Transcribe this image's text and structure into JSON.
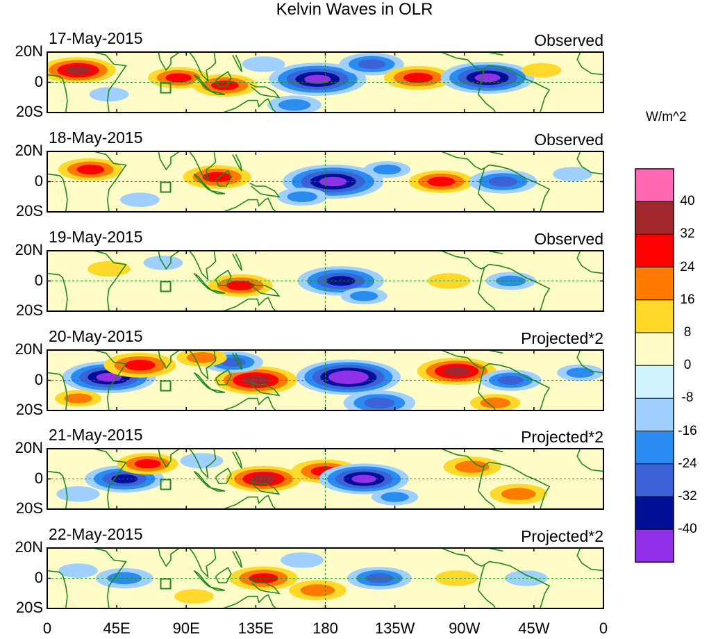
{
  "chart_data": {
    "type": "heatmap",
    "title": "Kelvin Waves in OLR",
    "units": "W/m^2",
    "x_ticks": [
      "0",
      "45E",
      "90E",
      "135E",
      "180",
      "135W",
      "90W",
      "45W",
      "0"
    ],
    "y_ticks": [
      "20N",
      "0",
      "20S"
    ],
    "xlim": [
      0,
      360
    ],
    "ylim": [
      -20,
      20
    ],
    "colorbar": {
      "levels": [
        "40",
        "32",
        "24",
        "16",
        "8",
        "0",
        "-8",
        "-16",
        "-24",
        "-32",
        "-40"
      ],
      "colors": [
        "#ff69b4",
        "#a0282d",
        "#ff0000",
        "#ff7a00",
        "#ffd92a",
        "#fffcc8",
        "#d0f3ff",
        "#9fd0ff",
        "#2a8cf0",
        "#3c62d8",
        "#000f96",
        "#9030e8"
      ]
    },
    "panels": [
      {
        "date": "17-May-2015",
        "kind": "Observed",
        "blobs": [
          {
            "lon": 20,
            "lat": 8,
            "v": 28
          },
          {
            "lon": 85,
            "lat": 3,
            "v": 20
          },
          {
            "lon": 115,
            "lat": -2,
            "v": 22
          },
          {
            "lon": 175,
            "lat": 2,
            "v": -40
          },
          {
            "lon": 160,
            "lat": -15,
            "v": -16
          },
          {
            "lon": 210,
            "lat": 12,
            "v": -22
          },
          {
            "lon": 240,
            "lat": 3,
            "v": 24
          },
          {
            "lon": 285,
            "lat": 3,
            "v": -38
          },
          {
            "lon": 140,
            "lat": 12,
            "v": -10
          },
          {
            "lon": 40,
            "lat": -8,
            "v": -8
          },
          {
            "lon": 320,
            "lat": 8,
            "v": 8
          }
        ]
      },
      {
        "date": "18-May-2015",
        "kind": "Observed",
        "blobs": [
          {
            "lon": 28,
            "lat": 8,
            "v": 22
          },
          {
            "lon": 110,
            "lat": 3,
            "v": 24
          },
          {
            "lon": 185,
            "lat": 0,
            "v": -42
          },
          {
            "lon": 165,
            "lat": -10,
            "v": -14
          },
          {
            "lon": 255,
            "lat": 0,
            "v": 22
          },
          {
            "lon": 295,
            "lat": 0,
            "v": -24
          },
          {
            "lon": 220,
            "lat": 8,
            "v": -12
          },
          {
            "lon": 60,
            "lat": -12,
            "v": -8
          },
          {
            "lon": 340,
            "lat": 5,
            "v": -8
          }
        ]
      },
      {
        "date": "19-May-2015",
        "kind": "Observed",
        "blobs": [
          {
            "lon": 125,
            "lat": -3,
            "v": 22
          },
          {
            "lon": 190,
            "lat": 0,
            "v": -34
          },
          {
            "lon": 205,
            "lat": -10,
            "v": -12
          },
          {
            "lon": 40,
            "lat": 8,
            "v": 10
          },
          {
            "lon": 260,
            "lat": 0,
            "v": 10
          },
          {
            "lon": 300,
            "lat": 0,
            "v": -14
          },
          {
            "lon": 75,
            "lat": 12,
            "v": -8
          }
        ]
      },
      {
        "date": "20-May-2015",
        "kind": "Projected*2",
        "blobs": [
          {
            "lon": 40,
            "lat": 2,
            "v": -38
          },
          {
            "lon": 60,
            "lat": 10,
            "v": 26
          },
          {
            "lon": 135,
            "lat": 0,
            "v": 32
          },
          {
            "lon": 120,
            "lat": 12,
            "v": -20
          },
          {
            "lon": 195,
            "lat": 2,
            "v": -44
          },
          {
            "lon": 215,
            "lat": -15,
            "v": -26
          },
          {
            "lon": 265,
            "lat": 6,
            "v": 30
          },
          {
            "lon": 300,
            "lat": 0,
            "v": -20
          },
          {
            "lon": 100,
            "lat": 15,
            "v": 14
          },
          {
            "lon": 290,
            "lat": -15,
            "v": 14
          },
          {
            "lon": 20,
            "lat": -12,
            "v": 12
          },
          {
            "lon": 345,
            "lat": 5,
            "v": -12
          }
        ]
      },
      {
        "date": "21-May-2015",
        "kind": "Projected*2",
        "blobs": [
          {
            "lon": 50,
            "lat": 0,
            "v": -30
          },
          {
            "lon": 65,
            "lat": 10,
            "v": 20
          },
          {
            "lon": 140,
            "lat": 0,
            "v": 28
          },
          {
            "lon": 180,
            "lat": 5,
            "v": 24
          },
          {
            "lon": 205,
            "lat": 0,
            "v": -36
          },
          {
            "lon": 225,
            "lat": -12,
            "v": -12
          },
          {
            "lon": 275,
            "lat": 8,
            "v": 18
          },
          {
            "lon": 305,
            "lat": -10,
            "v": 18
          },
          {
            "lon": 100,
            "lat": 12,
            "v": -10
          },
          {
            "lon": 20,
            "lat": -10,
            "v": -10
          }
        ]
      },
      {
        "date": "22-May-2015",
        "kind": "Projected*2",
        "blobs": [
          {
            "lon": 50,
            "lat": 0,
            "v": -18
          },
          {
            "lon": 140,
            "lat": 0,
            "v": 24
          },
          {
            "lon": 175,
            "lat": -8,
            "v": 18
          },
          {
            "lon": 215,
            "lat": 0,
            "v": -22
          },
          {
            "lon": 165,
            "lat": 12,
            "v": -10
          },
          {
            "lon": 265,
            "lat": 0,
            "v": 10
          },
          {
            "lon": 310,
            "lat": 0,
            "v": -10
          },
          {
            "lon": 20,
            "lat": 5,
            "v": -8
          },
          {
            "lon": 95,
            "lat": -12,
            "v": 8
          }
        ]
      }
    ]
  }
}
